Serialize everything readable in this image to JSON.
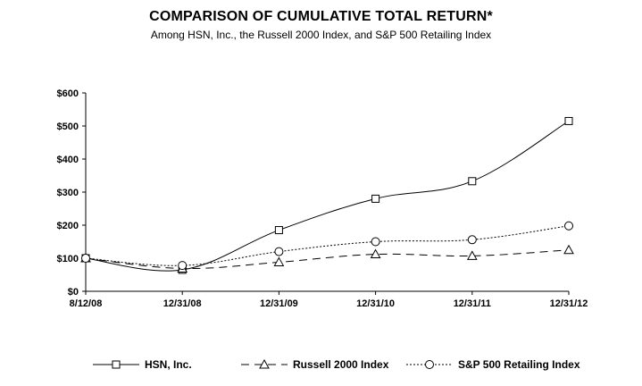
{
  "chart_data": {
    "type": "line",
    "title": "COMPARISON OF CUMULATIVE TOTAL RETURN*",
    "subtitle": "Among HSN, Inc., the Russell 2000 Index, and S&P 500 Retailing Index",
    "xlabel": "",
    "ylabel": "",
    "categories": [
      "8/12/08",
      "12/31/08",
      "12/31/09",
      "12/31/10",
      "12/31/11",
      "12/31/12"
    ],
    "yticks": [
      "$0",
      "$100",
      "$200",
      "$300",
      "$400",
      "$500",
      "$600"
    ],
    "ylim": [
      0,
      600
    ],
    "grid": false,
    "legend_position": "bottom",
    "series": [
      {
        "name": "HSN, Inc.",
        "values": [
          100,
          65,
          185,
          280,
          333,
          515
        ],
        "marker": "square",
        "dash": "solid",
        "color": "#000000"
      },
      {
        "name": "Russell 2000 Index",
        "values": [
          100,
          69,
          88,
          112,
          107,
          125
        ],
        "marker": "triangle",
        "dash": "long-dash",
        "color": "#000000"
      },
      {
        "name": "S&P 500 Retailing Index",
        "values": [
          100,
          78,
          120,
          150,
          156,
          198
        ],
        "marker": "circle",
        "dash": "dotted",
        "color": "#000000"
      }
    ]
  }
}
